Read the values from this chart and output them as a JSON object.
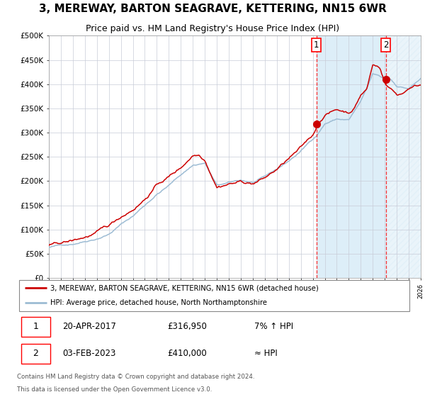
{
  "title": "3, MEREWAY, BARTON SEAGRAVE, KETTERING, NN15 6WR",
  "subtitle": "Price paid vs. HM Land Registry's House Price Index (HPI)",
  "ylim": [
    0,
    500000
  ],
  "yticks": [
    0,
    50000,
    100000,
    150000,
    200000,
    250000,
    300000,
    350000,
    400000,
    450000,
    500000
  ],
  "ytick_labels": [
    "£0",
    "£50K",
    "£100K",
    "£150K",
    "£200K",
    "£250K",
    "£300K",
    "£350K",
    "£400K",
    "£450K",
    "£500K"
  ],
  "hpi_color": "#9dbcd4",
  "price_color": "#cc0000",
  "marker_color": "#cc0000",
  "shaded_color": "#ddeef8",
  "hatch_color": "#c0d0e8",
  "grid_color": "#c8ccd8",
  "title_fontsize": 11,
  "subtitle_fontsize": 9,
  "tick_fontsize": 7.5,
  "purchase1_date": "20-APR-2017",
  "purchase1_price": 316950,
  "purchase1_label": "1",
  "purchase1_x": 2017.3,
  "purchase2_date": "03-FEB-2023",
  "purchase2_price": 410000,
  "purchase2_label": "2",
  "purchase2_x": 2023.09,
  "legend1": "3, MEREWAY, BARTON SEAGRAVE, KETTERING, NN15 6WR (detached house)",
  "legend2": "HPI: Average price, detached house, North Northamptonshire",
  "footnote1": "Contains HM Land Registry data © Crown copyright and database right 2024.",
  "footnote2": "This data is licensed under the Open Government Licence v3.0.",
  "xmin": 1995.0,
  "xmax": 2026.0,
  "purchase1_info": [
    "20-APR-2017",
    "£316,950",
    "7% ↑ HPI"
  ],
  "purchase2_info": [
    "03-FEB-2023",
    "£410,000",
    "≈ HPI"
  ]
}
